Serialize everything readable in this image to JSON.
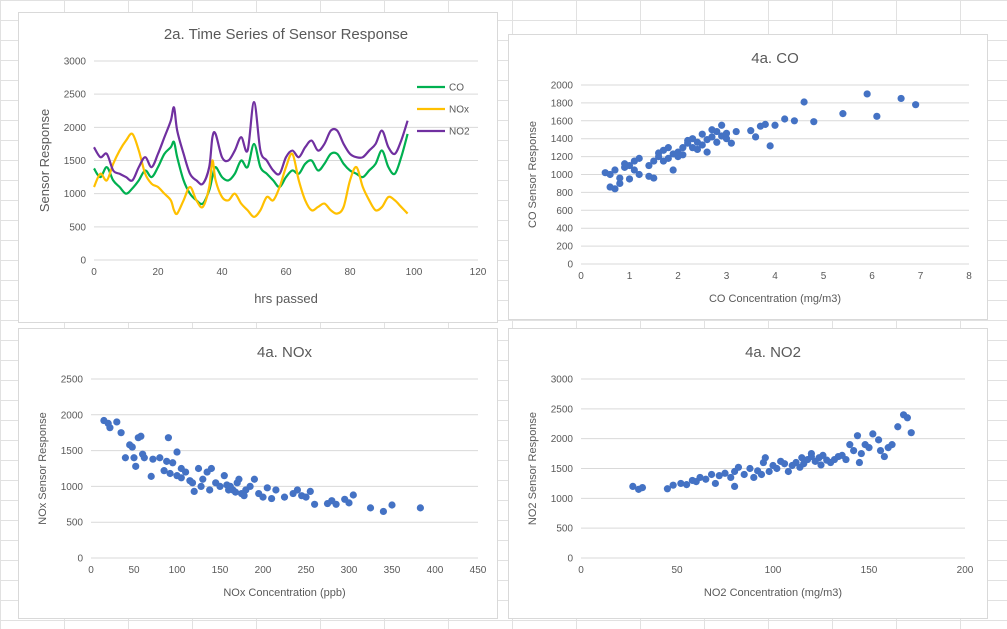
{
  "chart_data": [
    {
      "id": "ts",
      "type": "line",
      "title": "2a. Time Series of Sensor Response",
      "xlabel": "hrs passed",
      "ylabel": "Sensor Response",
      "xlim": [
        0,
        120
      ],
      "ylim": [
        0,
        3000
      ],
      "xticks": [
        0,
        20,
        40,
        60,
        80,
        100,
        120
      ],
      "yticks": [
        0,
        500,
        1000,
        1500,
        2000,
        2500,
        3000
      ],
      "legend": "right",
      "grid": true,
      "x": [
        0,
        2,
        4,
        6,
        8,
        10,
        12,
        14,
        16,
        18,
        20,
        22,
        24,
        25,
        26,
        28,
        30,
        32,
        34,
        36,
        37,
        38,
        40,
        42,
        44,
        46,
        48,
        50,
        52,
        54,
        56,
        58,
        60,
        62,
        64,
        66,
        68,
        70,
        72,
        74,
        76,
        78,
        80,
        82,
        84,
        86,
        88,
        90,
        92,
        94,
        96,
        98
      ],
      "series": [
        {
          "name": "CO",
          "color": "#00b050",
          "values": [
            1380,
            1250,
            1400,
            1200,
            1100,
            1000,
            1080,
            1200,
            1350,
            1250,
            1400,
            1600,
            1700,
            1780,
            1550,
            1200,
            1000,
            900,
            850,
            1050,
            1250,
            1400,
            1250,
            1200,
            1300,
            1500,
            1400,
            1750,
            1400,
            1300,
            1200,
            1100,
            1250,
            1350,
            1300,
            1450,
            1500,
            1350,
            1450,
            1600,
            1600,
            1450,
            1350,
            1300,
            1250,
            1350,
            1450,
            1650,
            1400,
            1300,
            1550,
            1900
          ]
        },
        {
          "name": "NOx",
          "color": "#ffc000",
          "values": [
            1100,
            1300,
            1200,
            1450,
            1650,
            1800,
            1900,
            1650,
            1300,
            1150,
            1100,
            1000,
            900,
            750,
            700,
            900,
            1100,
            900,
            800,
            1100,
            1500,
            1200,
            950,
            900,
            1000,
            850,
            750,
            650,
            750,
            950,
            900,
            1100,
            1400,
            1600,
            1200,
            900,
            750,
            800,
            850,
            750,
            700,
            800,
            1200,
            1400,
            1100,
            900,
            750,
            800,
            950,
            900,
            800,
            700
          ]
        },
        {
          "name": "NO2",
          "color": "#7030a0",
          "values": [
            1700,
            1550,
            1600,
            1350,
            1300,
            1250,
            1200,
            1400,
            1550,
            1400,
            1600,
            1850,
            2100,
            2300,
            1950,
            1600,
            1300,
            1200,
            1150,
            1400,
            1850,
            1900,
            1550,
            1500,
            1650,
            1850,
            1650,
            2380,
            1650,
            1500,
            1350,
            1300,
            1550,
            1650,
            1550,
            1700,
            1800,
            1650,
            1750,
            1950,
            1950,
            1750,
            1600,
            1550,
            1550,
            1650,
            1750,
            1950,
            1700,
            1600,
            1800,
            2100
          ]
        }
      ]
    },
    {
      "id": "co",
      "type": "scatter",
      "title": "4a. CO",
      "xlabel": "CO Concentration (mg/m3)",
      "ylabel": "CO Sensor Response",
      "xlim": [
        0,
        8
      ],
      "ylim": [
        0,
        2000
      ],
      "xticks": [
        0,
        1,
        2,
        3,
        4,
        5,
        6,
        7,
        8
      ],
      "yticks": [
        0,
        200,
        400,
        600,
        800,
        1000,
        1200,
        1400,
        1600,
        1800,
        2000
      ],
      "color": "#4472c4",
      "grid": true,
      "points": [
        [
          0.5,
          1020
        ],
        [
          0.6,
          1000
        ],
        [
          0.6,
          860
        ],
        [
          0.7,
          840
        ],
        [
          0.7,
          1050
        ],
        [
          0.8,
          900
        ],
        [
          0.8,
          960
        ],
        [
          0.9,
          1080
        ],
        [
          0.9,
          1120
        ],
        [
          1.0,
          950
        ],
        [
          1.0,
          1100
        ],
        [
          1.1,
          1150
        ],
        [
          1.1,
          1050
        ],
        [
          1.2,
          1180
        ],
        [
          1.2,
          1000
        ],
        [
          1.4,
          1100
        ],
        [
          1.4,
          980
        ],
        [
          1.5,
          1150
        ],
        [
          1.5,
          960
        ],
        [
          1.6,
          1200
        ],
        [
          1.6,
          1240
        ],
        [
          1.7,
          1150
        ],
        [
          1.7,
          1270
        ],
        [
          1.8,
          1180
        ],
        [
          1.8,
          1300
        ],
        [
          1.9,
          1230
        ],
        [
          1.9,
          1050
        ],
        [
          2.0,
          1250
        ],
        [
          2.0,
          1200
        ],
        [
          2.1,
          1300
        ],
        [
          2.1,
          1220
        ],
        [
          2.2,
          1350
        ],
        [
          2.2,
          1380
        ],
        [
          2.3,
          1300
        ],
        [
          2.3,
          1400
        ],
        [
          2.4,
          1280
        ],
        [
          2.4,
          1360
        ],
        [
          2.5,
          1330
        ],
        [
          2.5,
          1450
        ],
        [
          2.6,
          1390
        ],
        [
          2.6,
          1250
        ],
        [
          2.7,
          1420
        ],
        [
          2.7,
          1500
        ],
        [
          2.8,
          1360
        ],
        [
          2.8,
          1480
        ],
        [
          2.9,
          1430
        ],
        [
          2.9,
          1550
        ],
        [
          3.0,
          1400
        ],
        [
          3.0,
          1460
        ],
        [
          3.1,
          1350
        ],
        [
          3.2,
          1480
        ],
        [
          3.5,
          1490
        ],
        [
          3.6,
          1420
        ],
        [
          3.7,
          1540
        ],
        [
          3.8,
          1560
        ],
        [
          3.9,
          1320
        ],
        [
          4.0,
          1550
        ],
        [
          4.2,
          1620
        ],
        [
          4.4,
          1600
        ],
        [
          4.6,
          1810
        ],
        [
          4.8,
          1590
        ],
        [
          5.4,
          1680
        ],
        [
          5.9,
          1900
        ],
        [
          6.1,
          1650
        ],
        [
          6.6,
          1850
        ],
        [
          6.9,
          1780
        ]
      ]
    },
    {
      "id": "nox",
      "type": "scatter",
      "title": "4a. NOx",
      "xlabel": "NOx Concentration (ppb)",
      "ylabel": "NOx Sensor Response",
      "xlim": [
        0,
        450
      ],
      "ylim": [
        0,
        2500
      ],
      "xticks": [
        0,
        50,
        100,
        150,
        200,
        250,
        300,
        350,
        400,
        450
      ],
      "yticks": [
        0,
        500,
        1000,
        1500,
        2000,
        2500
      ],
      "color": "#4472c4",
      "grid": true,
      "points": [
        [
          15,
          1920
        ],
        [
          20,
          1880
        ],
        [
          22,
          1820
        ],
        [
          30,
          1900
        ],
        [
          35,
          1750
        ],
        [
          40,
          1400
        ],
        [
          45,
          1580
        ],
        [
          48,
          1550
        ],
        [
          50,
          1400
        ],
        [
          52,
          1280
        ],
        [
          55,
          1680
        ],
        [
          58,
          1700
        ],
        [
          60,
          1450
        ],
        [
          62,
          1400
        ],
        [
          70,
          1140
        ],
        [
          72,
          1380
        ],
        [
          80,
          1400
        ],
        [
          85,
          1220
        ],
        [
          88,
          1350
        ],
        [
          90,
          1680
        ],
        [
          92,
          1180
        ],
        [
          95,
          1330
        ],
        [
          100,
          1480
        ],
        [
          100,
          1150
        ],
        [
          105,
          1250
        ],
        [
          105,
          1120
        ],
        [
          110,
          1200
        ],
        [
          115,
          1080
        ],
        [
          118,
          1050
        ],
        [
          120,
          930
        ],
        [
          125,
          1250
        ],
        [
          128,
          1000
        ],
        [
          130,
          1100
        ],
        [
          135,
          1200
        ],
        [
          138,
          950
        ],
        [
          140,
          1250
        ],
        [
          145,
          1050
        ],
        [
          150,
          1000
        ],
        [
          155,
          1150
        ],
        [
          158,
          1020
        ],
        [
          160,
          950
        ],
        [
          162,
          1000
        ],
        [
          165,
          950
        ],
        [
          168,
          920
        ],
        [
          170,
          1050
        ],
        [
          172,
          1100
        ],
        [
          175,
          900
        ],
        [
          178,
          870
        ],
        [
          180,
          950
        ],
        [
          185,
          1000
        ],
        [
          190,
          1100
        ],
        [
          195,
          900
        ],
        [
          200,
          850
        ],
        [
          205,
          980
        ],
        [
          210,
          830
        ],
        [
          215,
          950
        ],
        [
          225,
          850
        ],
        [
          235,
          900
        ],
        [
          240,
          950
        ],
        [
          245,
          870
        ],
        [
          250,
          850
        ],
        [
          255,
          930
        ],
        [
          260,
          750
        ],
        [
          275,
          760
        ],
        [
          280,
          800
        ],
        [
          285,
          750
        ],
        [
          295,
          820
        ],
        [
          300,
          770
        ],
        [
          305,
          880
        ],
        [
          325,
          700
        ],
        [
          340,
          650
        ],
        [
          350,
          740
        ],
        [
          383,
          700
        ]
      ]
    },
    {
      "id": "no2",
      "type": "scatter",
      "title": "4a. NO2",
      "xlabel": "NO2 Concentration (mg/m3)",
      "ylabel": "NO2 Sensor Response",
      "xlim": [
        0,
        200
      ],
      "ylim": [
        0,
        3000
      ],
      "xticks": [
        0,
        50,
        100,
        150,
        200
      ],
      "yticks": [
        0,
        500,
        1000,
        1500,
        2000,
        2500,
        3000
      ],
      "color": "#4472c4",
      "grid": true,
      "points": [
        [
          27,
          1200
        ],
        [
          30,
          1150
        ],
        [
          32,
          1180
        ],
        [
          45,
          1160
        ],
        [
          48,
          1220
        ],
        [
          52,
          1250
        ],
        [
          55,
          1230
        ],
        [
          58,
          1300
        ],
        [
          60,
          1280
        ],
        [
          62,
          1350
        ],
        [
          65,
          1320
        ],
        [
          68,
          1400
        ],
        [
          70,
          1250
        ],
        [
          72,
          1380
        ],
        [
          75,
          1420
        ],
        [
          78,
          1350
        ],
        [
          80,
          1450
        ],
        [
          80,
          1200
        ],
        [
          82,
          1520
        ],
        [
          85,
          1400
        ],
        [
          88,
          1500
        ],
        [
          90,
          1350
        ],
        [
          92,
          1460
        ],
        [
          94,
          1400
        ],
        [
          95,
          1600
        ],
        [
          96,
          1680
        ],
        [
          98,
          1450
        ],
        [
          100,
          1550
        ],
        [
          102,
          1500
        ],
        [
          104,
          1620
        ],
        [
          106,
          1580
        ],
        [
          108,
          1450
        ],
        [
          110,
          1550
        ],
        [
          112,
          1600
        ],
        [
          114,
          1520
        ],
        [
          115,
          1680
        ],
        [
          116,
          1580
        ],
        [
          118,
          1650
        ],
        [
          120,
          1700
        ],
        [
          120,
          1750
        ],
        [
          122,
          1620
        ],
        [
          124,
          1680
        ],
        [
          125,
          1560
        ],
        [
          126,
          1720
        ],
        [
          128,
          1640
        ],
        [
          130,
          1600
        ],
        [
          132,
          1650
        ],
        [
          134,
          1700
        ],
        [
          136,
          1720
        ],
        [
          138,
          1650
        ],
        [
          140,
          1900
        ],
        [
          142,
          1800
        ],
        [
          144,
          2050
        ],
        [
          145,
          1600
        ],
        [
          146,
          1750
        ],
        [
          148,
          1900
        ],
        [
          150,
          1850
        ],
        [
          152,
          2080
        ],
        [
          155,
          1980
        ],
        [
          156,
          1800
        ],
        [
          158,
          1700
        ],
        [
          160,
          1850
        ],
        [
          162,
          1900
        ],
        [
          165,
          2200
        ],
        [
          168,
          2400
        ],
        [
          170,
          2350
        ],
        [
          172,
          2100
        ]
      ]
    }
  ]
}
